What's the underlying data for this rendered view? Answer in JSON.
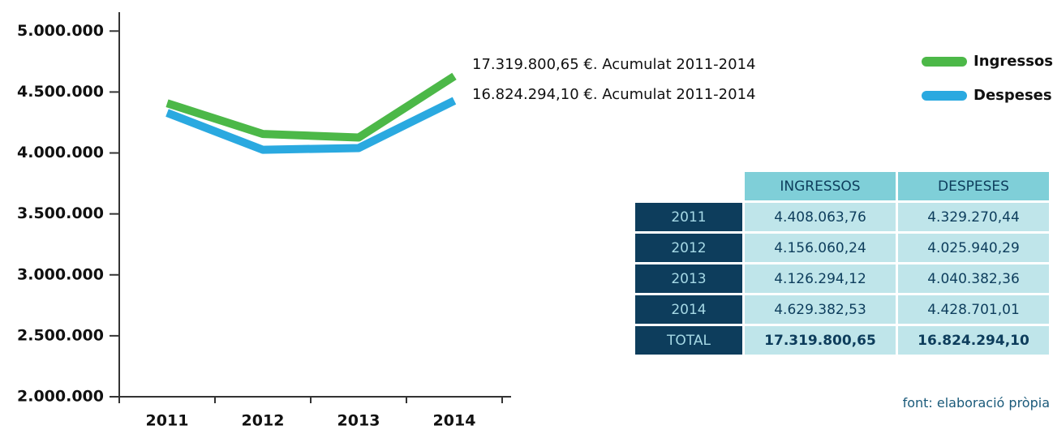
{
  "chart_data": {
    "type": "line",
    "categories": [
      "2011",
      "2012",
      "2013",
      "2014"
    ],
    "series": [
      {
        "name": "Ingressos",
        "color": "#4cb848",
        "values": [
          4408063.76,
          4156060.24,
          4126294.12,
          4629382.53
        ]
      },
      {
        "name": "Despeses",
        "color": "#2aa9e0",
        "values": [
          4329270.44,
          4025940.29,
          4040382.36,
          4428701.01
        ]
      }
    ],
    "annotations": [
      "17.319.800,65 €. Acumulat 2011-2014",
      "16.824.294,10 €. Acumulat 2011-2014"
    ],
    "ylim": [
      2000000,
      5155000
    ],
    "yticks": [
      {
        "value": 2000000,
        "label": "2.000.000"
      },
      {
        "value": 2500000,
        "label": "2.500.000"
      },
      {
        "value": 3000000,
        "label": "3.000.000"
      },
      {
        "value": 3500000,
        "label": "3.500.000"
      },
      {
        "value": 4000000,
        "label": "4.000.000"
      },
      {
        "value": 4500000,
        "label": "4.500.000"
      },
      {
        "value": 5000000,
        "label": "5.000.000"
      }
    ],
    "legend": "top-right"
  },
  "table": {
    "header": [
      "INGRESSOS",
      "DESPESES"
    ],
    "rows": [
      [
        "2011",
        "4.408.063,76",
        "4.329.270,44"
      ],
      [
        "2012",
        "4.156.060,24",
        "4.025.940,29"
      ],
      [
        "2013",
        "4.126.294,12",
        "4.040.382,36"
      ],
      [
        "2014",
        "4.629.382,53",
        "4.428.701,01"
      ],
      [
        "TOTAL",
        "17.319.800,65",
        "16.824.294,10"
      ]
    ]
  },
  "source": "font: elaboració pròpia"
}
